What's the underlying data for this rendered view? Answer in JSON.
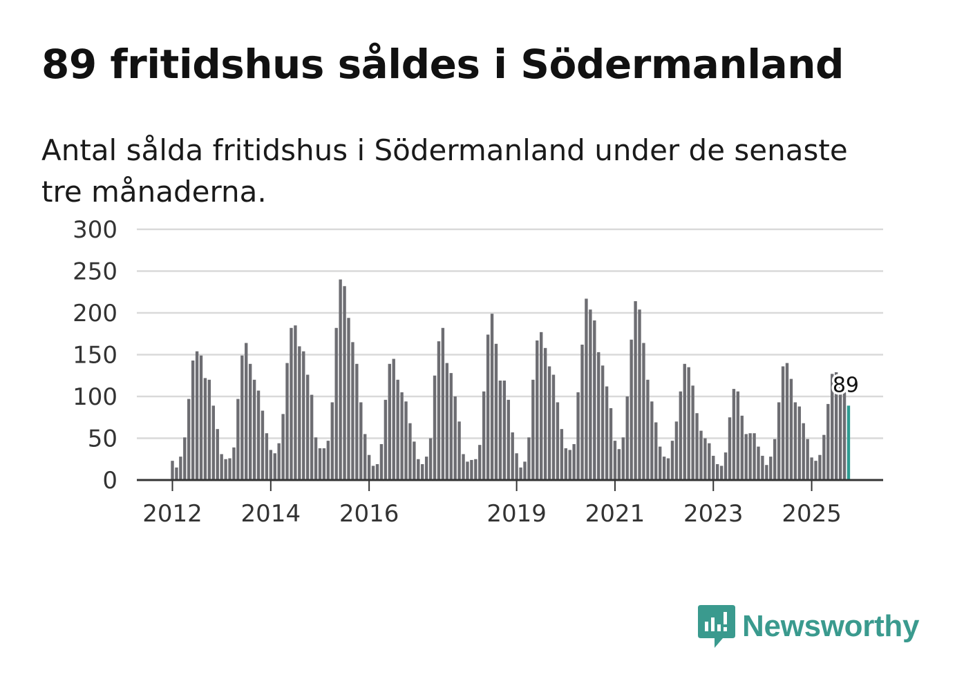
{
  "title": "89 fritidshus såldes i Södermanland",
  "subtitle": "Antal sålda fritidshus i Södermanland under de senaste tre månaderna.",
  "colors": {
    "bar": "#6d6d72",
    "highlight": "#2e9c92",
    "grid": "#d9d9d9",
    "axis": "#333333",
    "brand": "#3a9a8e"
  },
  "brand": {
    "name": "Newsworthy",
    "icon": "newsworthy-logo-icon"
  },
  "chart_data": {
    "type": "bar",
    "title": "89 fritidshus såldes i Södermanland",
    "xlabel": "",
    "ylabel": "",
    "ylim": [
      0,
      300
    ],
    "yticks": [
      0,
      50,
      100,
      150,
      200,
      250,
      300
    ],
    "xtick_labels": [
      {
        "index": 0,
        "label": "2012"
      },
      {
        "index": 24,
        "label": "2014"
      },
      {
        "index": 48,
        "label": "2016"
      },
      {
        "index": 84,
        "label": "2019"
      },
      {
        "index": 108,
        "label": "2021"
      },
      {
        "index": 132,
        "label": "2023"
      },
      {
        "index": 156,
        "label": "2025"
      }
    ],
    "first_period": "2012-01",
    "last_label": "89",
    "highlight_last": true,
    "values": [
      23,
      15,
      28,
      51,
      97,
      143,
      154,
      149,
      122,
      120,
      89,
      61,
      31,
      25,
      26,
      39,
      97,
      149,
      164,
      139,
      120,
      107,
      83,
      56,
      36,
      32,
      44,
      79,
      140,
      182,
      185,
      160,
      154,
      126,
      102,
      51,
      38,
      38,
      47,
      93,
      182,
      240,
      232,
      194,
      165,
      139,
      93,
      55,
      30,
      17,
      19,
      43,
      96,
      139,
      145,
      120,
      105,
      94,
      68,
      46,
      25,
      19,
      28,
      50,
      125,
      166,
      182,
      140,
      128,
      100,
      70,
      31,
      22,
      24,
      25,
      42,
      106,
      174,
      199,
      163,
      119,
      119,
      96,
      57,
      32,
      15,
      22,
      51,
      120,
      167,
      177,
      158,
      136,
      126,
      93,
      61,
      38,
      36,
      43,
      105,
      162,
      217,
      204,
      191,
      153,
      137,
      112,
      86,
      47,
      37,
      51,
      100,
      168,
      214,
      204,
      164,
      120,
      94,
      69,
      40,
      28,
      26,
      47,
      70,
      106,
      139,
      135,
      113,
      80,
      59,
      50,
      44,
      29,
      19,
      17,
      33,
      75,
      109,
      106,
      77,
      55,
      56,
      56,
      40,
      29,
      18,
      28,
      49,
      93,
      136,
      140,
      121,
      93,
      88,
      68,
      49,
      27,
      23,
      30,
      54,
      91,
      127,
      129,
      120,
      109,
      89
    ]
  }
}
